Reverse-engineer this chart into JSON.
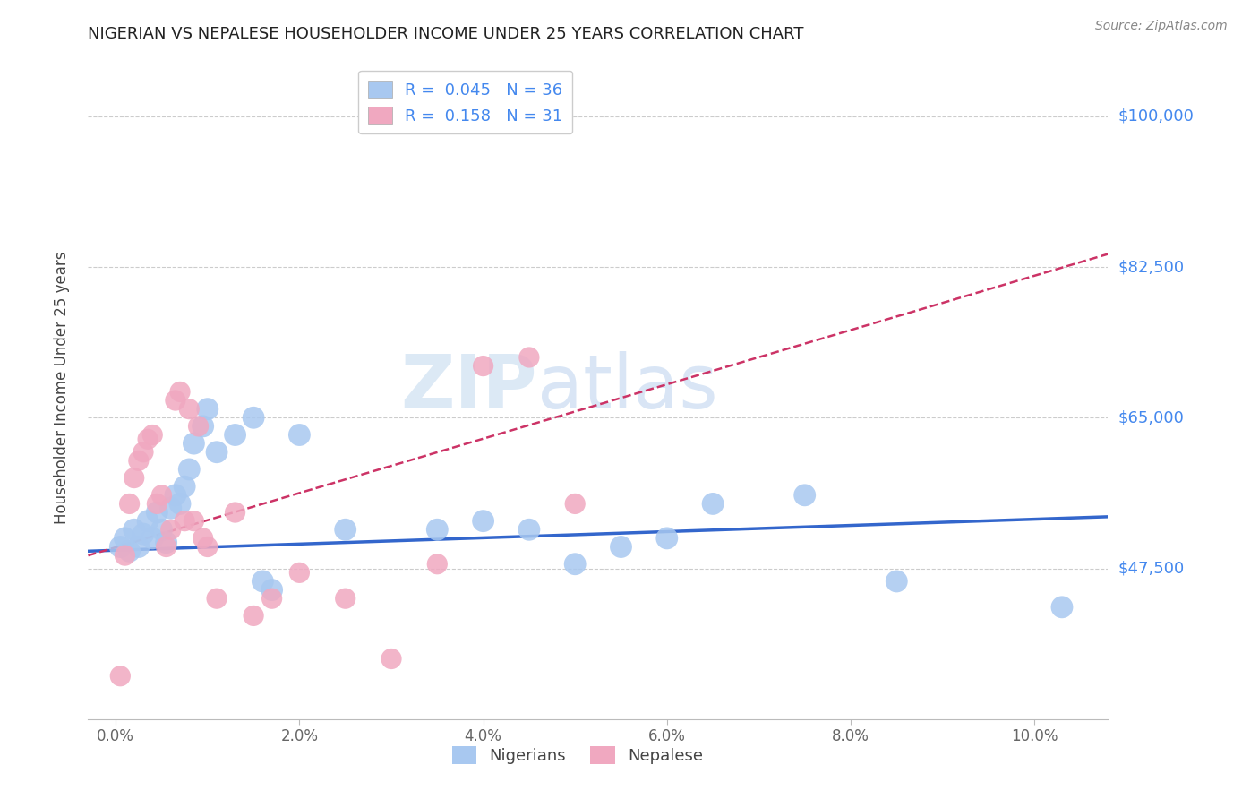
{
  "title": "NIGERIAN VS NEPALESE HOUSEHOLDER INCOME UNDER 25 YEARS CORRELATION CHART",
  "source": "Source: ZipAtlas.com",
  "ylabel": "Householder Income Under 25 years",
  "xlabel_ticks": [
    "0.0%",
    "2.0%",
    "4.0%",
    "6.0%",
    "8.0%",
    "10.0%"
  ],
  "xlabel_vals": [
    0.0,
    2.0,
    4.0,
    6.0,
    8.0,
    10.0
  ],
  "ytick_vals": [
    47500,
    65000,
    82500,
    100000
  ],
  "ytick_labels": [
    "$47,500",
    "$65,000",
    "$82,500",
    "$100,000"
  ],
  "ymin": 30000,
  "ymax": 107000,
  "xmin": -0.3,
  "xmax": 10.8,
  "nigerian_R": 0.045,
  "nigerian_N": 36,
  "nepalese_R": 0.158,
  "nepalese_N": 31,
  "nigerian_color": "#a8c8f0",
  "nepalese_color": "#f0a8c0",
  "nigerian_line_color": "#3366cc",
  "nepalese_line_color": "#cc3366",
  "watermark_zip": "ZIP",
  "watermark_atlas": "atlas",
  "nigerian_x": [
    0.05,
    0.1,
    0.15,
    0.2,
    0.25,
    0.3,
    0.35,
    0.4,
    0.45,
    0.5,
    0.55,
    0.6,
    0.65,
    0.7,
    0.75,
    0.8,
    0.85,
    0.95,
    1.0,
    1.1,
    1.3,
    1.5,
    1.6,
    1.7,
    2.0,
    2.5,
    3.5,
    4.0,
    4.5,
    5.0,
    5.5,
    6.0,
    6.5,
    7.5,
    8.5,
    10.3
  ],
  "nigerian_y": [
    50000,
    51000,
    49500,
    52000,
    50000,
    51500,
    53000,
    51000,
    54000,
    52000,
    50500,
    54500,
    56000,
    55000,
    57000,
    59000,
    62000,
    64000,
    66000,
    61000,
    63000,
    65000,
    46000,
    45000,
    63000,
    52000,
    52000,
    53000,
    52000,
    48000,
    50000,
    51000,
    55000,
    56000,
    46000,
    43000
  ],
  "nepalese_x": [
    0.05,
    0.1,
    0.15,
    0.2,
    0.25,
    0.3,
    0.35,
    0.4,
    0.45,
    0.5,
    0.55,
    0.6,
    0.65,
    0.7,
    0.75,
    0.8,
    0.85,
    0.9,
    0.95,
    1.0,
    1.1,
    1.3,
    1.5,
    1.7,
    2.0,
    2.5,
    3.0,
    3.5,
    4.0,
    4.5,
    5.0
  ],
  "nepalese_y": [
    35000,
    49000,
    55000,
    58000,
    60000,
    61000,
    62500,
    63000,
    55000,
    56000,
    50000,
    52000,
    67000,
    68000,
    53000,
    66000,
    53000,
    64000,
    51000,
    50000,
    44000,
    54000,
    42000,
    44000,
    47000,
    44000,
    37000,
    48000,
    71000,
    72000,
    55000
  ],
  "nigerian_trendline_x": [
    -0.3,
    10.8
  ],
  "nigerian_trendline_y": [
    49500,
    53500
  ],
  "nepalese_trendline_x": [
    -0.3,
    10.8
  ],
  "nepalese_trendline_y": [
    49000,
    84000
  ]
}
